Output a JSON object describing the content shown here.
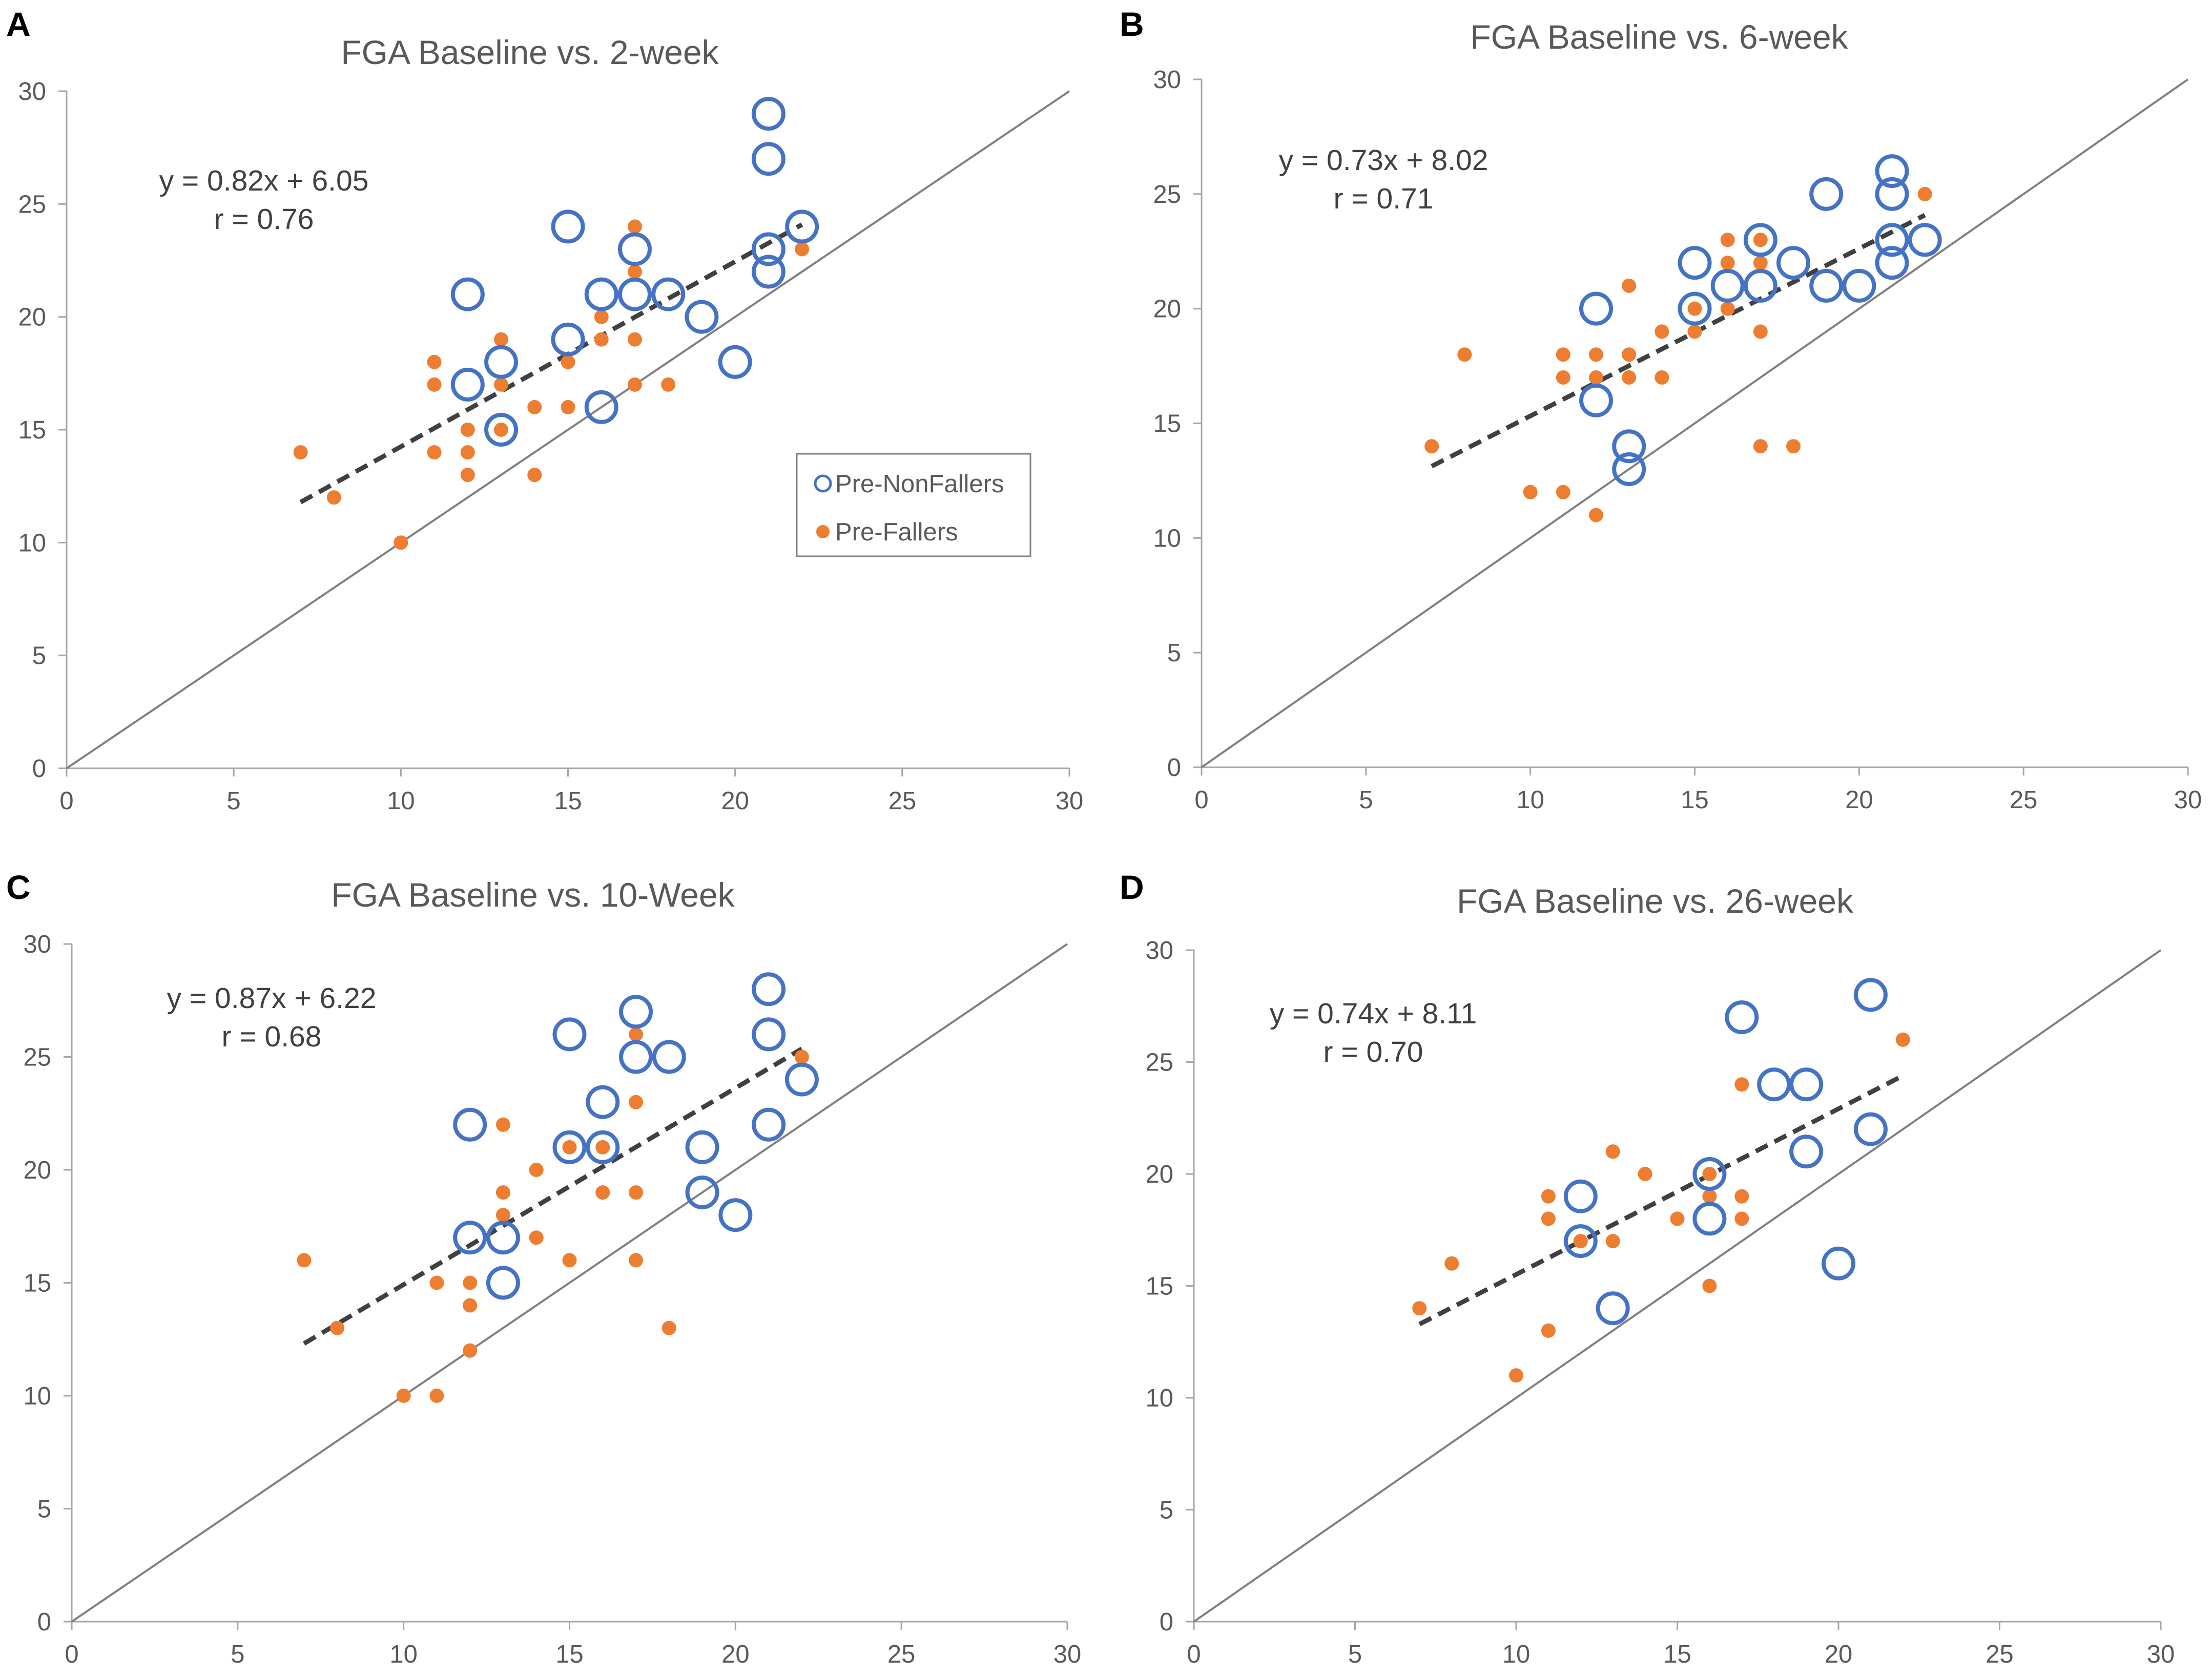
{
  "colors": {
    "non_fallers": "#4472C4",
    "fallers": "#ED7D31",
    "identity_line": "#7F7F7F",
    "trendline": "#404040",
    "axis": "#A6A6A6",
    "text": "#595959"
  },
  "legend": {
    "non_fallers": "Pre-NonFallers",
    "fallers": "Pre-Fallers"
  },
  "chart_data": [
    {
      "type": "scatter",
      "panel": "A",
      "title": "FGA Baseline vs. 2-week",
      "xlabel": "",
      "ylabel": "",
      "xlim": [
        0,
        30
      ],
      "ylim": [
        0,
        30
      ],
      "xticks": [
        "0",
        "5",
        "10",
        "15",
        "20",
        "25",
        "30"
      ],
      "yticks": [
        "0",
        "5",
        "10",
        "15",
        "20",
        "25",
        "30"
      ],
      "grid": false,
      "equation": "y = 0.82x + 6.05",
      "r_label": "r = 0.76",
      "trend": {
        "slope": 0.82,
        "intercept": 6.05,
        "x_range": [
          7,
          22
        ]
      },
      "identity_line": true,
      "legend_position": "right-middle",
      "series": [
        {
          "name": "Pre-NonFallers",
          "marker": "open-circle",
          "points": [
            [
              12,
              21
            ],
            [
              12,
              17
            ],
            [
              13,
              18
            ],
            [
              13,
              15
            ],
            [
              15,
              24
            ],
            [
              15,
              19
            ],
            [
              16,
              21
            ],
            [
              16,
              16
            ],
            [
              17,
              23
            ],
            [
              17,
              21
            ],
            [
              18,
              21
            ],
            [
              19,
              20
            ],
            [
              20,
              18
            ],
            [
              21,
              29
            ],
            [
              21,
              27
            ],
            [
              21,
              23
            ],
            [
              21,
              22
            ],
            [
              22,
              24
            ]
          ]
        },
        {
          "name": "Pre-Fallers",
          "marker": "filled-circle",
          "points": [
            [
              7,
              14
            ],
            [
              8,
              12
            ],
            [
              10,
              10
            ],
            [
              11,
              18
            ],
            [
              11,
              17
            ],
            [
              11,
              14
            ],
            [
              12,
              15
            ],
            [
              12,
              14
            ],
            [
              12,
              13
            ],
            [
              13,
              19
            ],
            [
              13,
              17
            ],
            [
              13,
              15
            ],
            [
              14,
              16
            ],
            [
              14,
              13
            ],
            [
              15,
              18
            ],
            [
              15,
              16
            ],
            [
              16,
              20
            ],
            [
              16,
              19
            ],
            [
              17,
              24
            ],
            [
              17,
              22
            ],
            [
              17,
              19
            ],
            [
              17,
              17
            ],
            [
              18,
              17
            ],
            [
              22,
              23
            ]
          ]
        }
      ]
    },
    {
      "type": "scatter",
      "panel": "B",
      "title": "FGA Baseline vs. 6-week",
      "xlabel": "",
      "ylabel": "",
      "xlim": [
        0,
        30
      ],
      "ylim": [
        0,
        30
      ],
      "xticks": [
        "0",
        "5",
        "10",
        "15",
        "20",
        "25",
        "30"
      ],
      "yticks": [
        "0",
        "5",
        "10",
        "15",
        "20",
        "25",
        "30"
      ],
      "grid": false,
      "equation": "y = 0.73x + 8.02",
      "r_label": "r = 0.71",
      "trend": {
        "slope": 0.73,
        "intercept": 8.02,
        "x_range": [
          7,
          22
        ]
      },
      "identity_line": true,
      "series": [
        {
          "name": "Pre-NonFallers",
          "marker": "open-circle",
          "points": [
            [
              12,
              20
            ],
            [
              12,
              16
            ],
            [
              13,
              14
            ],
            [
              13,
              13
            ],
            [
              15,
              22
            ],
            [
              15,
              20
            ],
            [
              16,
              21
            ],
            [
              17,
              23
            ],
            [
              17,
              21
            ],
            [
              18,
              22
            ],
            [
              19,
              25
            ],
            [
              19,
              21
            ],
            [
              20,
              21
            ],
            [
              21,
              26
            ],
            [
              21,
              25
            ],
            [
              21,
              23
            ],
            [
              21,
              22
            ],
            [
              22,
              23
            ]
          ]
        },
        {
          "name": "Pre-Fallers",
          "marker": "filled-circle",
          "points": [
            [
              7,
              14
            ],
            [
              8,
              18
            ],
            [
              10,
              12
            ],
            [
              11,
              18
            ],
            [
              11,
              17
            ],
            [
              11,
              12
            ],
            [
              12,
              18
            ],
            [
              12,
              17
            ],
            [
              12,
              11
            ],
            [
              13,
              21
            ],
            [
              13,
              18
            ],
            [
              13,
              17
            ],
            [
              14,
              19
            ],
            [
              14,
              17
            ],
            [
              15,
              20
            ],
            [
              15,
              19
            ],
            [
              16,
              23
            ],
            [
              16,
              22
            ],
            [
              16,
              20
            ],
            [
              17,
              23
            ],
            [
              17,
              22
            ],
            [
              17,
              19
            ],
            [
              17,
              14
            ],
            [
              18,
              14
            ],
            [
              22,
              25
            ]
          ]
        }
      ]
    },
    {
      "type": "scatter",
      "panel": "C",
      "title": "FGA Baseline vs. 10-Week",
      "xlabel": "",
      "ylabel": "",
      "xlim": [
        0,
        30
      ],
      "ylim": [
        0,
        30
      ],
      "xticks": [
        "0",
        "5",
        "10",
        "15",
        "20",
        "25",
        "30"
      ],
      "yticks": [
        "0",
        "5",
        "10",
        "15",
        "20",
        "25",
        "30"
      ],
      "grid": false,
      "equation": "y = 0.87x + 6.22",
      "r_label": "r = 0.68",
      "trend": {
        "slope": 0.87,
        "intercept": 6.22,
        "x_range": [
          7,
          22
        ]
      },
      "identity_line": true,
      "series": [
        {
          "name": "Pre-NonFallers",
          "marker": "open-circle",
          "points": [
            [
              12,
              22
            ],
            [
              12,
              17
            ],
            [
              13,
              17
            ],
            [
              13,
              15
            ],
            [
              15,
              26
            ],
            [
              15,
              21
            ],
            [
              16,
              23
            ],
            [
              16,
              21
            ],
            [
              17,
              27
            ],
            [
              17,
              25
            ],
            [
              18,
              25
            ],
            [
              19,
              21
            ],
            [
              19,
              19
            ],
            [
              20,
              18
            ],
            [
              21,
              28
            ],
            [
              21,
              26
            ],
            [
              21,
              22
            ],
            [
              22,
              24
            ]
          ]
        },
        {
          "name": "Pre-Fallers",
          "marker": "filled-circle",
          "points": [
            [
              7,
              16
            ],
            [
              8,
              13
            ],
            [
              10,
              10
            ],
            [
              11,
              15
            ],
            [
              11,
              10
            ],
            [
              12,
              15
            ],
            [
              12,
              14
            ],
            [
              12,
              12
            ],
            [
              13,
              22
            ],
            [
              13,
              19
            ],
            [
              13,
              18
            ],
            [
              14,
              20
            ],
            [
              14,
              17
            ],
            [
              15,
              21
            ],
            [
              15,
              16
            ],
            [
              16,
              21
            ],
            [
              16,
              19
            ],
            [
              17,
              26
            ],
            [
              17,
              23
            ],
            [
              17,
              19
            ],
            [
              17,
              16
            ],
            [
              18,
              13
            ],
            [
              22,
              25
            ]
          ]
        }
      ]
    },
    {
      "type": "scatter",
      "panel": "D",
      "title": "FGA Baseline vs. 26-week",
      "xlabel": "",
      "ylabel": "",
      "xlim": [
        0,
        30
      ],
      "ylim": [
        0,
        30
      ],
      "xticks": [
        "0",
        "5",
        "10",
        "15",
        "20",
        "25",
        "30"
      ],
      "yticks": [
        "0",
        "5",
        "10",
        "15",
        "20",
        "25",
        "30"
      ],
      "grid": false,
      "equation": "y = 0.74x + 8.11",
      "r_label": "r = 0.70",
      "trend": {
        "slope": 0.74,
        "intercept": 8.11,
        "x_range": [
          7,
          22
        ]
      },
      "identity_line": true,
      "series": [
        {
          "name": "Pre-NonFallers",
          "marker": "open-circle",
          "points": [
            [
              12,
              19
            ],
            [
              12,
              17
            ],
            [
              13,
              14
            ],
            [
              16,
              20
            ],
            [
              16,
              18
            ],
            [
              17,
              27
            ],
            [
              18,
              24
            ],
            [
              19,
              24
            ],
            [
              19,
              21
            ],
            [
              20,
              16
            ],
            [
              21,
              28
            ],
            [
              21,
              22
            ]
          ]
        },
        {
          "name": "Pre-Fallers",
          "marker": "filled-circle",
          "points": [
            [
              7,
              14
            ],
            [
              8,
              16
            ],
            [
              10,
              11
            ],
            [
              11,
              19
            ],
            [
              11,
              18
            ],
            [
              11,
              13
            ],
            [
              12,
              17
            ],
            [
              13,
              21
            ],
            [
              13,
              17
            ],
            [
              14,
              20
            ],
            [
              15,
              18
            ],
            [
              16,
              20
            ],
            [
              16,
              19
            ],
            [
              16,
              15
            ],
            [
              17,
              24
            ],
            [
              17,
              19
            ],
            [
              17,
              18
            ],
            [
              22,
              26
            ]
          ]
        }
      ]
    }
  ]
}
